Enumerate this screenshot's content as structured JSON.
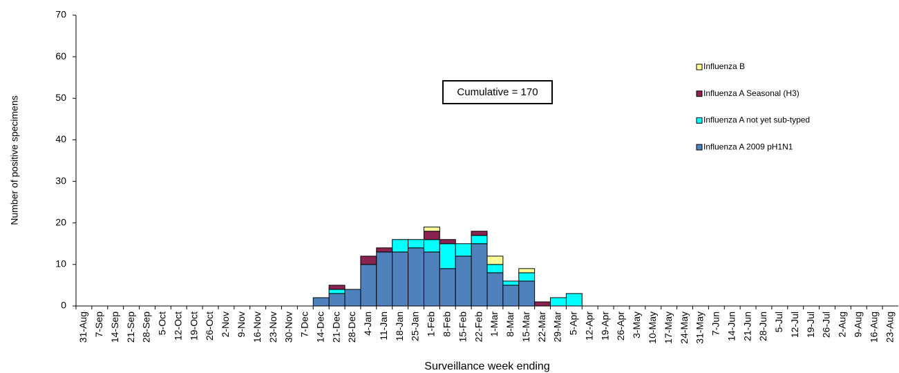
{
  "chart_data": {
    "type": "stacked-bar",
    "y_label": "Number of positive specimens",
    "x_label": "Surveillance week ending",
    "annotation": "Cumulative = 170",
    "categories": [
      "31-Aug",
      "7-Sep",
      "14-Sep",
      "21-Sep",
      "28-Sep",
      "5-Oct",
      "12-Oct",
      "19-Oct",
      "26-Oct",
      "2-Nov",
      "9-Nov",
      "16-Nov",
      "23-Nov",
      "30-Nov",
      "7-Dec",
      "14-Dec",
      "21-Dec",
      "28-Dec",
      "4-Jan",
      "11-Jan",
      "18-Jan",
      "25-Jan",
      "1-Feb",
      "8-Feb",
      "15-Feb",
      "22-Feb",
      "1-Mar",
      "8-Mar",
      "15-Mar",
      "22-Mar",
      "29-Mar",
      "5-Apr",
      "12-Apr",
      "19-Apr",
      "26-Apr",
      "3-May",
      "10-May",
      "17-May",
      "24-May",
      "31-May",
      "7-Jun",
      "14-Jun",
      "21-Jun",
      "28-Jun",
      "5-Jul",
      "12-Jul",
      "19-Jul",
      "26-Jul",
      "2-Aug",
      "9-Aug",
      "16-Aug",
      "23-Aug"
    ],
    "series": [
      {
        "name": "Influenza A 2009 pH1N1",
        "color": "#4f81bd",
        "values": [
          0,
          0,
          0,
          0,
          0,
          0,
          0,
          0,
          0,
          0,
          0,
          0,
          0,
          0,
          0,
          2,
          3,
          4,
          10,
          13,
          13,
          14,
          13,
          9,
          12,
          15,
          8,
          5,
          6,
          0,
          0,
          0,
          0,
          0,
          0,
          0,
          0,
          0,
          0,
          0,
          0,
          0,
          0,
          0,
          0,
          0,
          0,
          0,
          0,
          0,
          0,
          0
        ]
      },
      {
        "name": "Influenza A not yet sub-typed",
        "color": "#00ffff",
        "values": [
          0,
          0,
          0,
          0,
          0,
          0,
          0,
          0,
          0,
          0,
          0,
          0,
          0,
          0,
          0,
          0,
          1,
          0,
          0,
          0,
          3,
          2,
          3,
          6,
          3,
          2,
          2,
          1,
          2,
          0,
          2,
          3,
          0,
          0,
          0,
          0,
          0,
          0,
          0,
          0,
          0,
          0,
          0,
          0,
          0,
          0,
          0,
          0,
          0,
          0,
          0,
          0
        ]
      },
      {
        "name": "Influenza A Seasonal (H3)",
        "color": "#8b2252",
        "values": [
          0,
          0,
          0,
          0,
          0,
          0,
          0,
          0,
          0,
          0,
          0,
          0,
          0,
          0,
          0,
          0,
          1,
          0,
          2,
          1,
          0,
          0,
          2,
          1,
          0,
          1,
          0,
          0,
          0,
          1,
          0,
          0,
          0,
          0,
          0,
          0,
          0,
          0,
          0,
          0,
          0,
          0,
          0,
          0,
          0,
          0,
          0,
          0,
          0,
          0,
          0,
          0
        ]
      },
      {
        "name": "Influenza B",
        "color": "#ffff99",
        "values": [
          0,
          0,
          0,
          0,
          0,
          0,
          0,
          0,
          0,
          0,
          0,
          0,
          0,
          0,
          0,
          0,
          0,
          0,
          0,
          0,
          0,
          0,
          1,
          0,
          0,
          0,
          2,
          0,
          1,
          0,
          0,
          0,
          0,
          0,
          0,
          0,
          0,
          0,
          0,
          0,
          0,
          0,
          0,
          0,
          0,
          0,
          0,
          0,
          0,
          0,
          0,
          0
        ]
      }
    ],
    "ylim": [
      0,
      70
    ],
    "yticks": [
      0,
      10,
      20,
      30,
      40,
      50,
      60,
      70
    ]
  }
}
